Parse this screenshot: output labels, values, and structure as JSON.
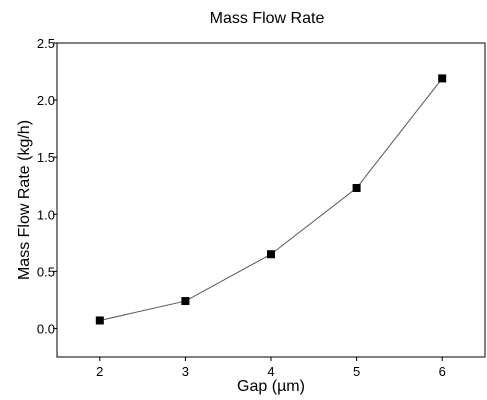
{
  "chart_data": {
    "type": "line",
    "title": "Mass Flow Rate",
    "xlabel": "Gap (µm)",
    "ylabel": "Mass Flow Rate (kg/h)",
    "xlim": [
      1.5,
      6.5
    ],
    "ylim": [
      -0.25,
      2.5
    ],
    "x_ticks": [
      2,
      3,
      4,
      5,
      6
    ],
    "x_tick_labels": [
      "2",
      "3",
      "4",
      "5",
      "6"
    ],
    "y_ticks": [
      0.0,
      0.5,
      1.0,
      1.5,
      2.0,
      2.5
    ],
    "y_tick_labels": [
      "0.0",
      "0.5",
      "1.0",
      "1.5",
      "2.0",
      "2.5"
    ],
    "grid": false,
    "legend": "none",
    "marker": "square",
    "colors": {
      "line": "#555555",
      "marker": "#000000",
      "frame": "#000000"
    },
    "series": [
      {
        "x": [
          2,
          3,
          4,
          5,
          6
        ],
        "values": [
          0.07,
          0.24,
          0.65,
          1.23,
          2.19
        ]
      }
    ]
  }
}
